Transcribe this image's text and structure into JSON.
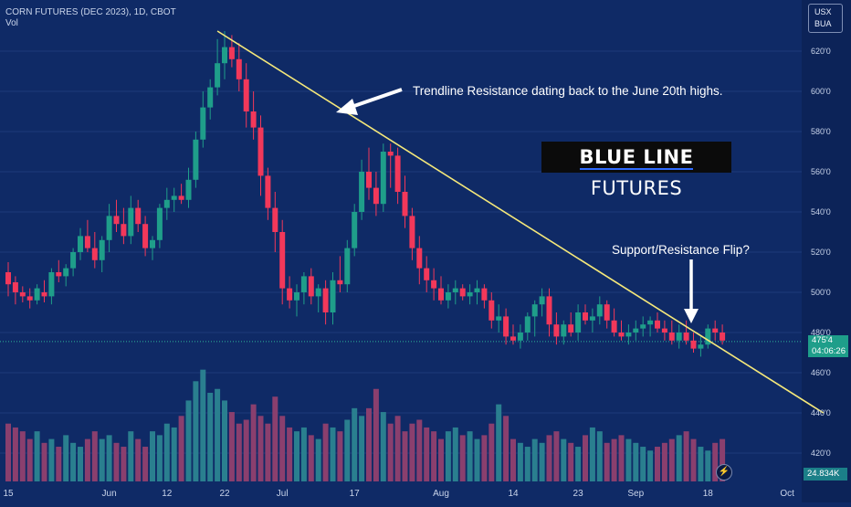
{
  "header": {
    "symbol": "CORN FUTURES (DEC 2023), 1D, CBOT",
    "vol_label": "Vol"
  },
  "currency_badge": {
    "line1": "USX",
    "line2": "BUA"
  },
  "brand": {
    "bold": "BLUE LINE",
    "rest": " FUTURES"
  },
  "annotations": {
    "trendline": "Trendline Resistance dating back to the June 20th highs.",
    "flip": "Support/Resistance Flip?"
  },
  "price_tag": {
    "price": "475'4",
    "countdown": "04:06:26"
  },
  "volume_tag": "24.834K",
  "colors": {
    "background": "#0f2a66",
    "up": "#1f9e8a",
    "down": "#f2385a",
    "trendline": "#f5e87a",
    "volume_up": "#2a7f8f",
    "volume_down": "#8a3f6e"
  },
  "icons": {
    "alert": "lightning-icon"
  },
  "chart_data": {
    "type": "candlestick",
    "title": "CORN FUTURES (DEC 2023), 1D, CBOT",
    "price_range": [
      410,
      632
    ],
    "y_ticks": [
      {
        "value": 420,
        "label": "420'0"
      },
      {
        "value": 440,
        "label": "440'0"
      },
      {
        "value": 460,
        "label": "460'0"
      },
      {
        "value": 480,
        "label": "480'0"
      },
      {
        "value": 500,
        "label": "500'0"
      },
      {
        "value": 520,
        "label": "520'0"
      },
      {
        "value": 540,
        "label": "540'0"
      },
      {
        "value": 560,
        "label": "560'0"
      },
      {
        "value": 580,
        "label": "580'0"
      },
      {
        "value": 600,
        "label": "600'0"
      },
      {
        "value": 620,
        "label": "620'0"
      }
    ],
    "x_ticks": [
      {
        "index": 0,
        "label": "15"
      },
      {
        "index": 14,
        "label": "Jun"
      },
      {
        "index": 22,
        "label": "12"
      },
      {
        "index": 30,
        "label": "22"
      },
      {
        "index": 38,
        "label": "Jul"
      },
      {
        "index": 48,
        "label": "17"
      },
      {
        "index": 60,
        "label": "Aug"
      },
      {
        "index": 70,
        "label": "14"
      },
      {
        "index": 79,
        "label": "23"
      },
      {
        "index": 87,
        "label": "Sep"
      },
      {
        "index": 97,
        "label": "18"
      },
      {
        "index": 108,
        "label": "Oct"
      }
    ],
    "candles": [
      [
        510,
        515,
        498,
        504
      ],
      [
        505,
        508,
        494,
        500
      ],
      [
        500,
        503,
        495,
        498
      ],
      [
        498,
        502,
        492,
        496
      ],
      [
        496,
        504,
        494,
        502
      ],
      [
        500,
        506,
        495,
        498
      ],
      [
        498,
        512,
        494,
        510
      ],
      [
        510,
        516,
        505,
        508
      ],
      [
        508,
        514,
        503,
        512
      ],
      [
        512,
        522,
        508,
        520
      ],
      [
        520,
        532,
        516,
        528
      ],
      [
        528,
        536,
        520,
        522
      ],
      [
        522,
        530,
        512,
        516
      ],
      [
        516,
        528,
        510,
        526
      ],
      [
        526,
        544,
        520,
        538
      ],
      [
        538,
        546,
        530,
        534
      ],
      [
        534,
        542,
        524,
        528
      ],
      [
        528,
        548,
        524,
        542
      ],
      [
        542,
        546,
        530,
        534
      ],
      [
        534,
        538,
        518,
        522
      ],
      [
        522,
        528,
        516,
        526
      ],
      [
        526,
        544,
        522,
        542
      ],
      [
        542,
        552,
        536,
        546
      ],
      [
        546,
        552,
        540,
        548
      ],
      [
        548,
        554,
        544,
        546
      ],
      [
        546,
        562,
        542,
        556
      ],
      [
        556,
        580,
        552,
        576
      ],
      [
        576,
        600,
        572,
        592
      ],
      [
        592,
        606,
        586,
        602
      ],
      [
        602,
        626,
        598,
        614
      ],
      [
        614,
        630,
        606,
        622
      ],
      [
        622,
        628,
        612,
        616
      ],
      [
        616,
        624,
        600,
        606
      ],
      [
        606,
        614,
        582,
        590
      ],
      [
        590,
        600,
        576,
        582
      ],
      [
        582,
        588,
        548,
        558
      ],
      [
        558,
        562,
        536,
        542
      ],
      [
        542,
        550,
        520,
        530
      ],
      [
        530,
        536,
        494,
        502
      ],
      [
        502,
        508,
        492,
        496
      ],
      [
        496,
        504,
        488,
        500
      ],
      [
        500,
        510,
        494,
        508
      ],
      [
        508,
        512,
        494,
        498
      ],
      [
        498,
        504,
        490,
        502
      ],
      [
        502,
        506,
        484,
        490
      ],
      [
        490,
        510,
        484,
        506
      ],
      [
        506,
        518,
        500,
        504
      ],
      [
        504,
        526,
        500,
        522
      ],
      [
        522,
        544,
        518,
        540
      ],
      [
        540,
        566,
        536,
        560
      ],
      [
        560,
        572,
        546,
        552
      ],
      [
        552,
        560,
        538,
        544
      ],
      [
        544,
        574,
        540,
        570
      ],
      [
        570,
        574,
        552,
        568
      ],
      [
        568,
        572,
        544,
        550
      ],
      [
        550,
        558,
        532,
        538
      ],
      [
        538,
        542,
        516,
        522
      ],
      [
        522,
        528,
        504,
        512
      ],
      [
        512,
        518,
        500,
        506
      ],
      [
        506,
        512,
        496,
        502
      ],
      [
        502,
        508,
        494,
        496
      ],
      [
        496,
        504,
        492,
        500
      ],
      [
        500,
        506,
        494,
        502
      ],
      [
        502,
        504,
        496,
        498
      ],
      [
        498,
        504,
        494,
        500
      ],
      [
        500,
        506,
        494,
        502
      ],
      [
        502,
        504,
        492,
        496
      ],
      [
        496,
        500,
        482,
        486
      ],
      [
        486,
        494,
        480,
        488
      ],
      [
        488,
        492,
        474,
        478
      ],
      [
        478,
        484,
        474,
        476
      ],
      [
        476,
        484,
        472,
        480
      ],
      [
        480,
        490,
        476,
        488
      ],
      [
        488,
        496,
        478,
        494
      ],
      [
        494,
        502,
        488,
        498
      ],
      [
        498,
        502,
        478,
        484
      ],
      [
        484,
        490,
        474,
        478
      ],
      [
        478,
        486,
        474,
        484
      ],
      [
        484,
        490,
        478,
        480
      ],
      [
        480,
        494,
        476,
        490
      ],
      [
        490,
        494,
        484,
        486
      ],
      [
        486,
        492,
        480,
        488
      ],
      [
        488,
        498,
        484,
        494
      ],
      [
        494,
        496,
        482,
        486
      ],
      [
        486,
        492,
        478,
        480
      ],
      [
        480,
        486,
        476,
        478
      ],
      [
        478,
        484,
        474,
        480
      ],
      [
        480,
        486,
        476,
        482
      ],
      [
        482,
        488,
        478,
        484
      ],
      [
        484,
        488,
        478,
        486
      ],
      [
        486,
        490,
        480,
        482
      ],
      [
        482,
        486,
        476,
        480
      ],
      [
        480,
        486,
        474,
        476
      ],
      [
        476,
        484,
        472,
        480
      ],
      [
        480,
        486,
        474,
        476
      ],
      [
        476,
        480,
        470,
        472
      ],
      [
        472,
        478,
        468,
        474
      ],
      [
        474,
        484,
        472,
        482
      ],
      [
        482,
        486,
        476,
        480
      ],
      [
        480,
        484,
        474,
        476
      ]
    ],
    "volume_k": [
      30,
      28,
      26,
      22,
      26,
      20,
      22,
      18,
      24,
      20,
      18,
      22,
      26,
      22,
      24,
      20,
      18,
      26,
      22,
      18,
      26,
      24,
      30,
      28,
      34,
      42,
      52,
      58,
      46,
      48,
      42,
      36,
      30,
      32,
      40,
      34,
      30,
      44,
      34,
      28,
      26,
      28,
      24,
      22,
      30,
      28,
      26,
      32,
      38,
      34,
      38,
      48,
      36,
      30,
      34,
      26,
      30,
      32,
      28,
      26,
      22,
      26,
      28,
      24,
      26,
      22,
      24,
      30,
      40,
      34,
      22,
      20,
      18,
      22,
      20,
      24,
      26,
      22,
      20,
      18,
      24,
      28,
      26,
      20,
      22,
      24,
      22,
      20,
      18,
      16,
      18,
      20,
      22,
      24,
      26,
      22,
      18,
      16,
      20,
      22
    ],
    "current_price": 475.5,
    "trendline": {
      "label": "Trendline Resistance dating back to the June 20th highs.",
      "start": {
        "index": 29,
        "value": 630
      },
      "end": {
        "index": 113,
        "value": 440
      }
    }
  }
}
